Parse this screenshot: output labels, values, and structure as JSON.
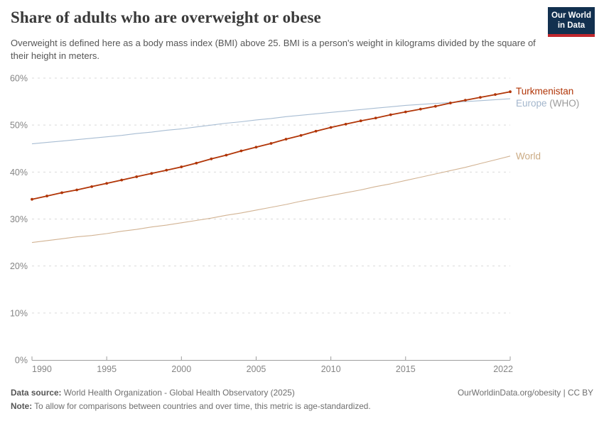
{
  "header": {
    "title": "Share of adults who are overweight or obese",
    "subtitle": "Overweight is defined here as a body mass index (BMI) above 25. BMI is a person's weight in kilograms divided by the square of their height in meters.",
    "logo": {
      "line1": "Our World",
      "line2": "in Data",
      "bg_color": "#12304f",
      "accent_color": "#c1272d"
    }
  },
  "chart_data": {
    "type": "line",
    "title": "Share of adults who are overweight or obese",
    "xlabel": "",
    "ylabel": "",
    "xlim": [
      1990,
      2022
    ],
    "ylim": [
      0,
      60
    ],
    "xticks": [
      1990,
      1995,
      2000,
      2005,
      2010,
      2015,
      2022
    ],
    "yticks": [
      0,
      10,
      20,
      30,
      40,
      50,
      60
    ],
    "ytick_suffix": "%",
    "grid": "dashed-horizontal",
    "legend_position": "right-end-labels",
    "x": [
      1990,
      1991,
      1992,
      1993,
      1994,
      1995,
      1996,
      1997,
      1998,
      1999,
      2000,
      2001,
      2002,
      2003,
      2004,
      2005,
      2006,
      2007,
      2008,
      2009,
      2010,
      2011,
      2012,
      2013,
      2014,
      2015,
      2016,
      2017,
      2018,
      2019,
      2020,
      2021,
      2022
    ],
    "series": [
      {
        "name": "Europe (WHO)",
        "label": "Europe",
        "label_suffix": " (WHO)",
        "color": "#a8bdd3",
        "label_color": "#a3b6cc",
        "suffix_color": "#9b9b9b",
        "markers": false,
        "values": [
          46.0,
          46.3,
          46.6,
          46.9,
          47.2,
          47.5,
          47.8,
          48.2,
          48.5,
          48.9,
          49.2,
          49.6,
          50.0,
          50.4,
          50.7,
          51.1,
          51.4,
          51.8,
          52.1,
          52.4,
          52.7,
          53.0,
          53.3,
          53.6,
          53.9,
          54.2,
          54.4,
          54.6,
          54.8,
          55.0,
          55.2,
          55.4,
          55.6
        ]
      },
      {
        "name": "World",
        "label": "World",
        "label_suffix": "",
        "color": "#d2b393",
        "label_color": "#cbab84",
        "suffix_color": "#9b9b9b",
        "markers": false,
        "values": [
          25.0,
          25.4,
          25.8,
          26.2,
          26.5,
          26.9,
          27.4,
          27.8,
          28.3,
          28.7,
          29.2,
          29.7,
          30.2,
          30.8,
          31.3,
          31.9,
          32.5,
          33.1,
          33.8,
          34.4,
          35.0,
          35.6,
          36.2,
          36.9,
          37.5,
          38.2,
          38.9,
          39.6,
          40.3,
          41.0,
          41.8,
          42.6,
          43.4
        ]
      },
      {
        "name": "Turkmenistan",
        "label": "Turkmenistan",
        "label_suffix": "",
        "color": "#b13507",
        "label_color": "#b13507",
        "suffix_color": "#9b9b9b",
        "markers": true,
        "values": [
          34.2,
          34.9,
          35.6,
          36.2,
          36.9,
          37.6,
          38.3,
          39.0,
          39.7,
          40.4,
          41.1,
          41.9,
          42.8,
          43.6,
          44.5,
          45.3,
          46.1,
          47.0,
          47.8,
          48.7,
          49.5,
          50.2,
          50.9,
          51.5,
          52.2,
          52.8,
          53.4,
          54.0,
          54.7,
          55.3,
          55.9,
          56.5,
          57.1
        ]
      }
    ]
  },
  "footer": {
    "source_label": "Data source:",
    "source_text": " World Health Organization - Global Health Observatory (2025)",
    "link_text": "OurWorldinData.org/obesity | CC BY",
    "note_label": "Note:",
    "note_text": " To allow for comparisons between countries and over time, this metric is age-standardized."
  }
}
